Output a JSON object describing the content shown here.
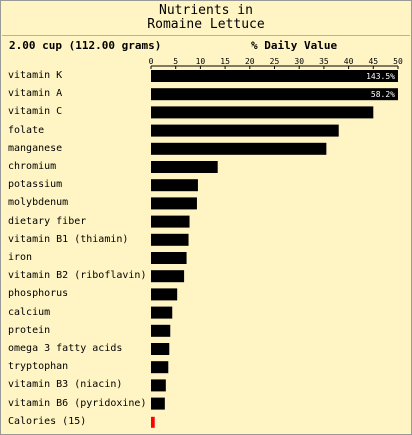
{
  "title_line1": "Nutrients in",
  "title_line2": "Romaine Lettuce",
  "serving": "2.00 cup (112.00 grams)",
  "daily_value_label": "% Daily Value",
  "colors": {
    "background": "#fff5c4",
    "bar": "#000000",
    "calories_bar": "#ff0000",
    "bar_text": "#ffffff"
  },
  "chart_data": {
    "type": "bar",
    "orientation": "horizontal",
    "xlim": [
      0,
      50
    ],
    "xticks": [
      "0",
      "5",
      "10",
      "15",
      "20",
      "25",
      "30",
      "35",
      "40",
      "45",
      "50"
    ],
    "categories": [
      "vitamin K",
      "vitamin A",
      "vitamin C",
      "folate",
      "manganese",
      "chromium",
      "potassium",
      "molybdenum",
      "dietary fiber",
      "vitamin B1 (thiamin)",
      "iron",
      "vitamin B2 (riboflavin)",
      "phosphorus",
      "calcium",
      "protein",
      "omega 3 fatty acids",
      "tryptophan",
      "vitamin B3 (niacin)",
      "vitamin B6 (pyridoxine)",
      "Calories (15)"
    ],
    "values": [
      143.5,
      58.2,
      45,
      38,
      35.5,
      13.5,
      9.5,
      9.3,
      7.8,
      7.6,
      7.2,
      6.7,
      5.3,
      4.3,
      3.9,
      3.7,
      3.5,
      3.0,
      2.8,
      0.75
    ],
    "data_labels": [
      "143.5%",
      "58.2%",
      "",
      "",
      "",
      "",
      "",
      "",
      "",
      "",
      "",
      "",
      "",
      "",
      "",
      "",
      "",
      "",
      "",
      ""
    ]
  }
}
